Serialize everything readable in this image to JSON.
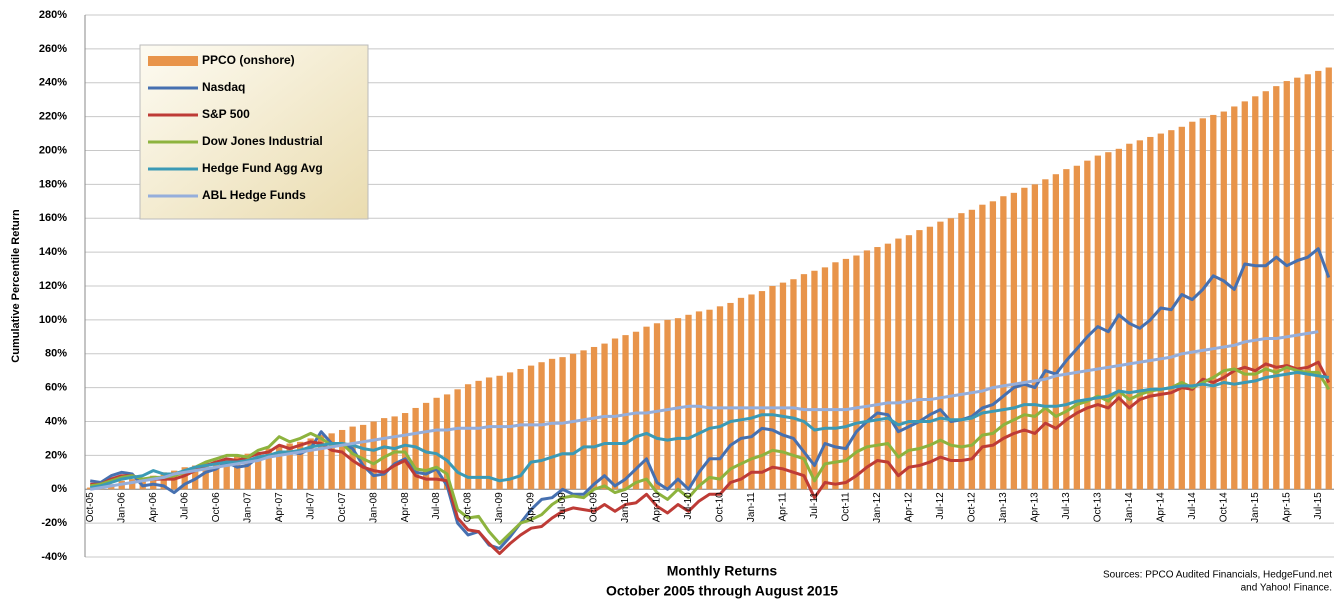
{
  "chart_data": {
    "type": "bar",
    "ylabel": "Cumulative Percentile Return",
    "xlabel": [
      "Monthly Returns",
      "October 2005 through August 2015"
    ],
    "source": [
      "Sources: PPCO Audited Financials, HedgeFund.net",
      "and Yahoo! Finance."
    ],
    "legend": "upper left",
    "grid": true,
    "ylim": [
      -40,
      280
    ],
    "yticks": [
      {
        "value": -40,
        "label": "-40%"
      },
      {
        "value": -20,
        "label": "-20%"
      },
      {
        "value": 0,
        "label": "0%"
      },
      {
        "value": 20,
        "label": "20%"
      },
      {
        "value": 40,
        "label": "40%"
      },
      {
        "value": 60,
        "label": "60%"
      },
      {
        "value": 80,
        "label": "80%"
      },
      {
        "value": 100,
        "label": "100%"
      },
      {
        "value": 120,
        "label": "120%"
      },
      {
        "value": 140,
        "label": "140%"
      },
      {
        "value": 160,
        "label": "160%"
      },
      {
        "value": 180,
        "label": "180%"
      },
      {
        "value": 200,
        "label": "200%"
      },
      {
        "value": 220,
        "label": "220%"
      },
      {
        "value": 240,
        "label": "240%"
      },
      {
        "value": 260,
        "label": "260%"
      },
      {
        "value": 280,
        "label": "280%"
      }
    ],
    "categories": [
      "Oct-05",
      null,
      null,
      "Jan-06",
      null,
      null,
      "Apr-06",
      null,
      null,
      "Jul-06",
      null,
      null,
      "Oct-06",
      null,
      null,
      "Jan-07",
      null,
      null,
      "Apr-07",
      null,
      null,
      "Jul-07",
      null,
      null,
      "Oct-07",
      null,
      null,
      "Jan-08",
      null,
      null,
      "Apr-08",
      null,
      null,
      "Jul-08",
      null,
      null,
      "Oct-08",
      null,
      null,
      "Jan-09",
      null,
      null,
      "Apr-09",
      null,
      null,
      "Jul-09",
      null,
      null,
      "Oct-09",
      null,
      null,
      "Jan-10",
      null,
      null,
      "Apr-10",
      null,
      null,
      "Jul-10",
      null,
      null,
      "Oct-10",
      null,
      null,
      "Jan-11",
      null,
      null,
      "Apr-11",
      null,
      null,
      "Jul-11",
      null,
      null,
      "Oct-11",
      null,
      null,
      "Jan-12",
      null,
      null,
      "Apr-12",
      null,
      null,
      "Jul-12",
      null,
      null,
      "Oct-12",
      null,
      null,
      "Jan-13",
      null,
      null,
      "Apr-13",
      null,
      null,
      "Jul-13",
      null,
      null,
      "Oct-13",
      null,
      null,
      "Jan-14",
      null,
      null,
      "Apr-14",
      null,
      null,
      "Jul-14",
      null,
      null,
      "Oct-14",
      null,
      null,
      "Jan-15",
      null,
      null,
      "Apr-15",
      null,
      null,
      "Jul-15",
      null
    ],
    "series": [
      {
        "name": "PPCO (onshore)",
        "type": "bar",
        "color": "#e8944a",
        "values": [
          1,
          2,
          3,
          5,
          6,
          7,
          8,
          10,
          11,
          13,
          14,
          16,
          17,
          18,
          20,
          21,
          22,
          24,
          25,
          27,
          28,
          30,
          32,
          33,
          35,
          37,
          38,
          40,
          42,
          43,
          45,
          48,
          51,
          54,
          56,
          59,
          62,
          64,
          66,
          67,
          69,
          71,
          73,
          75,
          77,
          78,
          80,
          82,
          84,
          86,
          89,
          91,
          93,
          96,
          98,
          100,
          101,
          103,
          105,
          106,
          108,
          110,
          113,
          115,
          117,
          120,
          122,
          124,
          127,
          129,
          131,
          134,
          136,
          138,
          141,
          143,
          145,
          148,
          150,
          153,
          155,
          158,
          160,
          163,
          165,
          168,
          170,
          173,
          175,
          178,
          180,
          183,
          186,
          189,
          191,
          194,
          197,
          199,
          201,
          204,
          206,
          208,
          210,
          212,
          214,
          217,
          219,
          221,
          223,
          226,
          229,
          232,
          235,
          238,
          241,
          243,
          245,
          247,
          249
        ]
      },
      {
        "name": "Nasdaq",
        "type": "line",
        "color": "#4670b0",
        "values": [
          5,
          4,
          8,
          10,
          9,
          2,
          3,
          2,
          -2,
          3,
          6,
          10,
          12,
          16,
          13,
          14,
          19,
          20,
          20,
          22,
          21,
          24,
          34,
          27,
          27,
          24,
          14,
          8,
          9,
          15,
          18,
          10,
          9,
          12,
          2,
          -20,
          -27,
          -25,
          -33,
          -35,
          -28,
          -20,
          -12,
          -6,
          -5,
          0,
          -3,
          -3,
          3,
          8,
          2,
          6,
          12,
          18,
          4,
          0,
          6,
          0,
          10,
          18,
          18,
          26,
          30,
          31,
          36,
          35,
          32,
          30,
          22,
          14,
          27,
          25,
          24,
          34,
          40,
          45,
          44,
          34,
          37,
          40,
          44,
          47,
          40,
          41,
          43,
          48,
          50,
          55,
          60,
          62,
          60,
          70,
          68,
          76,
          83,
          90,
          96,
          93,
          103,
          98,
          95,
          100,
          107,
          106,
          115,
          112,
          118,
          126,
          123,
          118,
          133,
          132,
          132,
          137,
          132,
          135,
          137,
          142,
          125
        ]
      },
      {
        "name": "S&P 500",
        "type": "line",
        "color": "#be3b36",
        "values": [
          3,
          3,
          6,
          8,
          8,
          6,
          6,
          6,
          6,
          8,
          11,
          14,
          16,
          18,
          17,
          19,
          21,
          22,
          26,
          24,
          26,
          28,
          27,
          23,
          22,
          17,
          13,
          11,
          10,
          14,
          17,
          8,
          6,
          6,
          5,
          -17,
          -24,
          -25,
          -32,
          -38,
          -32,
          -27,
          -23,
          -22,
          -17,
          -13,
          -11,
          -12,
          -13,
          -9,
          -13,
          -9,
          -8,
          -3,
          -10,
          -14,
          -9,
          -13,
          -7,
          -3,
          -3,
          4,
          6,
          10,
          10,
          13,
          12,
          10,
          8,
          -5,
          4,
          3,
          4,
          8,
          13,
          17,
          16,
          8,
          13,
          14,
          16,
          19,
          17,
          17,
          18,
          25,
          26,
          30,
          33,
          35,
          33,
          39,
          36,
          41,
          45,
          48,
          50,
          48,
          54,
          48,
          53,
          55,
          56,
          57,
          60,
          59,
          65,
          63,
          66,
          70,
          72,
          70,
          74,
          72,
          73,
          71,
          72,
          75,
          63
        ]
      },
      {
        "name": "Dow Jones Industrial",
        "type": "line",
        "color": "#8db33e",
        "values": [
          2,
          3,
          5,
          7,
          8,
          6,
          7,
          7,
          8,
          10,
          13,
          16,
          18,
          20,
          20,
          19,
          23,
          25,
          31,
          28,
          30,
          33,
          30,
          26,
          27,
          21,
          18,
          15,
          19,
          22,
          22,
          12,
          11,
          13,
          9,
          -12,
          -17,
          -16,
          -25,
          -32,
          -26,
          -20,
          -18,
          -15,
          -9,
          -5,
          -4,
          -5,
          0,
          2,
          -2,
          0,
          4,
          6,
          -2,
          -6,
          0,
          -5,
          2,
          7,
          6,
          12,
          15,
          18,
          20,
          23,
          22,
          20,
          18,
          5,
          15,
          16,
          17,
          22,
          25,
          26,
          27,
          19,
          23,
          24,
          26,
          29,
          26,
          25,
          26,
          32,
          33,
          38,
          41,
          44,
          43,
          48,
          43,
          46,
          50,
          52,
          55,
          52,
          58,
          53,
          56,
          58,
          59,
          60,
          63,
          60,
          63,
          66,
          70,
          71,
          68,
          68,
          71,
          69,
          72,
          70,
          69,
          69,
          59
        ]
      },
      {
        "name": "Hedge Fund Agg Avg",
        "type": "line",
        "color": "#3b9ab5",
        "values": [
          1,
          2,
          4,
          6,
          7,
          8,
          11,
          9,
          9,
          11,
          13,
          14,
          15,
          16,
          16,
          17,
          19,
          20,
          22,
          22,
          23,
          25,
          26,
          27,
          27,
          26,
          24,
          23,
          25,
          24,
          26,
          25,
          22,
          21,
          17,
          10,
          7,
          7,
          7,
          5,
          6,
          8,
          16,
          17,
          19,
          21,
          21,
          25,
          25,
          27,
          27,
          27,
          31,
          33,
          30,
          29,
          30,
          30,
          33,
          36,
          37,
          40,
          41,
          42,
          44,
          44,
          43,
          42,
          40,
          35,
          36,
          36,
          37,
          39,
          40,
          41,
          42,
          38,
          40,
          40,
          40,
          42,
          41,
          41,
          42,
          45,
          46,
          47,
          48,
          50,
          50,
          49,
          49,
          50,
          52,
          53,
          54,
          55,
          58,
          57,
          58,
          59,
          59,
          60,
          61,
          61,
          62,
          61,
          63,
          62,
          63,
          64,
          66,
          67,
          68,
          69,
          68,
          67,
          66
        ]
      },
      {
        "name": "ABL Hedge Funds",
        "type": "line",
        "color": "#95aedb",
        "values": [
          0,
          1,
          2,
          3,
          4,
          5,
          6,
          7,
          9,
          10,
          11,
          12,
          13,
          14,
          15,
          16,
          17,
          19,
          20,
          21,
          22,
          23,
          24,
          25,
          26,
          27,
          28,
          29,
          30,
          31,
          32,
          33,
          34,
          35,
          35,
          36,
          36,
          36,
          37,
          37,
          37,
          38,
          38,
          38,
          39,
          39,
          40,
          41,
          42,
          43,
          43,
          44,
          45,
          45,
          46,
          47,
          48,
          49,
          49,
          48,
          48,
          48,
          48,
          48,
          48,
          48,
          48,
          48,
          47,
          47,
          47,
          47,
          47,
          48,
          49,
          50,
          51,
          51,
          52,
          53,
          53,
          54,
          55,
          56,
          57,
          58,
          60,
          61,
          62,
          63,
          64,
          65,
          67,
          68,
          69,
          70,
          71,
          72,
          73,
          74,
          75,
          76,
          77,
          78,
          80,
          81,
          82,
          83,
          84,
          85,
          87,
          88,
          89,
          89,
          90,
          91,
          92,
          93,
          null
        ]
      }
    ]
  }
}
